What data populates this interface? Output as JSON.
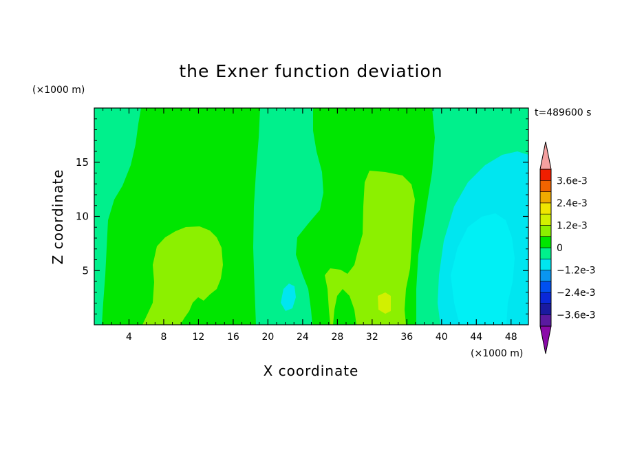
{
  "chart_data": {
    "type": "heatmap",
    "title": "the Exner function deviation",
    "xlabel": "X coordinate",
    "ylabel": "Z coordinate",
    "x_unit": "(×1000 m)",
    "y_unit": "(×1000 m)",
    "time_label": "t=489600 s",
    "xlim": [
      0,
      50
    ],
    "ylim": [
      0,
      20
    ],
    "x_ticks": [
      4,
      8,
      12,
      16,
      20,
      24,
      28,
      32,
      36,
      40,
      44,
      48
    ],
    "y_ticks": [
      5,
      10,
      15
    ],
    "colorbar": {
      "levels": [
        -0.0042,
        -0.0036,
        -0.003,
        -0.0024,
        -0.0018,
        -0.0012,
        -0.0006,
        0,
        0.0006,
        0.0012,
        0.0018,
        0.0024,
        0.003,
        0.0036,
        0.0042
      ],
      "colors": [
        "#8a0aa8",
        "#5a1aa0",
        "#1a1aa0",
        "#0a28d8",
        "#0050f0",
        "#0a96f0",
        "#00e6f0",
        "#00f08c",
        "#00e600",
        "#8cf000",
        "#d2f000",
        "#f0e600",
        "#f0aa00",
        "#f06400",
        "#f01e00",
        "#f5a0a0"
      ],
      "tick_labels": [
        {
          "value": 0.0036,
          "label": "3.6e-3"
        },
        {
          "value": 0.0024,
          "label": "2.4e-3"
        },
        {
          "value": 0.0012,
          "label": "1.2e-3"
        },
        {
          "value": 0,
          "label": "0"
        },
        {
          "value": -0.0012,
          "label": "−1.2e-3"
        },
        {
          "value": -0.0024,
          "label": "−2.4e-3"
        },
        {
          "value": -0.0036,
          "label": "−3.6e-3"
        }
      ]
    },
    "bands": [
      {
        "x": [
          0,
          4.5
        ],
        "z_range": [
          0,
          20
        ],
        "color": "#00f08c"
      },
      {
        "x": [
          4.5,
          19
        ],
        "z_range": [
          0,
          20
        ],
        "color": "#00e600"
      },
      {
        "x": [
          19,
          25
        ],
        "z_range": [
          0,
          20
        ],
        "color": "#00f08c"
      },
      {
        "x": [
          25,
          38
        ],
        "z_range": [
          0,
          20
        ],
        "color": "#00e600"
      },
      {
        "x": [
          38,
          50
        ],
        "z_range": [
          0,
          20
        ],
        "color": "#00f08c"
      }
    ],
    "anomalies": [
      {
        "value": 0.0009,
        "center": [
          10.7,
          3.8
        ],
        "color": "#8cf000"
      },
      {
        "value": 0.0009,
        "center": [
          31.5,
          6.5
        ],
        "color": "#8cf000"
      },
      {
        "value": -0.0009,
        "center": [
          44.5,
          7.5
        ],
        "color": "#00e6f0"
      },
      {
        "value": -0.0003,
        "center": [
          22.0,
          2.8
        ],
        "color": "#00f08c"
      }
    ]
  }
}
